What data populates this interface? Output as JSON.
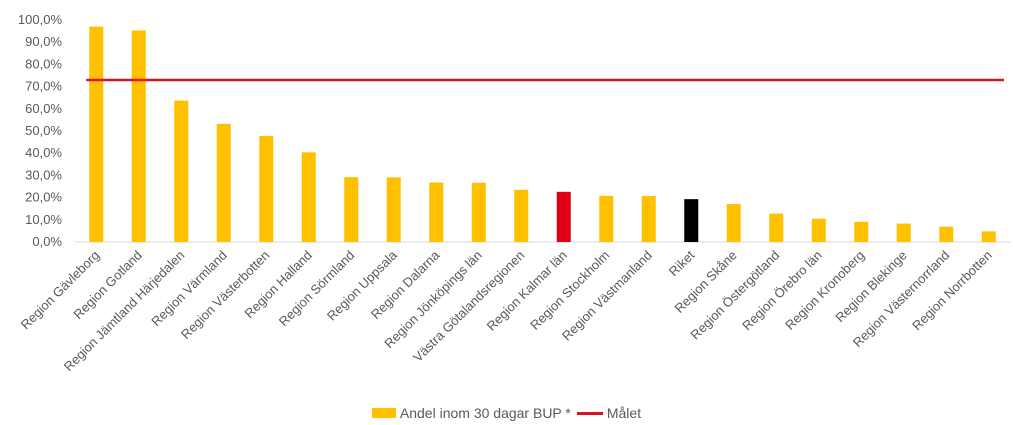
{
  "chart_data": {
    "type": "bar",
    "categories": [
      "Region Gävleborg",
      "Region Gotland",
      "Region Jämtland Härjedalen",
      "Region Värmland",
      "Region Västerbotten",
      "Region Halland",
      "Region Sörmland",
      "Region Uppsala",
      "Region Dalarna",
      "Region Jönköpings län",
      "Västra Götalandsregionen",
      "Region Kalmar län",
      "Region Stockholm",
      "Region Västmanland",
      "Riket",
      "Region Skåne",
      "Region Östergötland",
      "Region Örebro län",
      "Region Kronoberg",
      "Region Blekinge",
      "Region Västernorrland",
      "Region Norrbotten"
    ],
    "series": [
      {
        "name": "Andel inom 30 dagar BUP *",
        "values": [
          97.0,
          95.3,
          63.7,
          53.2,
          47.8,
          40.4,
          29.2,
          29.1,
          26.8,
          26.7,
          23.5,
          22.6,
          20.8,
          20.7,
          19.3,
          17.1,
          12.8,
          10.5,
          9.1,
          8.3,
          6.9,
          4.8
        ],
        "color": "#FFC000",
        "highlight_colors": {
          "Region Kalmar län": "#E00016",
          "Riket": "#000000"
        }
      },
      {
        "name": "Målet",
        "type": "line",
        "value": 73.0,
        "color": "#D9141E"
      }
    ],
    "ylim": [
      0,
      100
    ],
    "yticks": [
      0,
      10,
      20,
      30,
      40,
      50,
      60,
      70,
      80,
      90,
      100
    ],
    "ytick_labels": [
      "0,0%",
      "10,0%",
      "20,0%",
      "30,0%",
      "40,0%",
      "50,0%",
      "60,0%",
      "70,0%",
      "80,0%",
      "90,0%",
      "100,0%"
    ],
    "legend_position": "bottom",
    "grid": false
  }
}
